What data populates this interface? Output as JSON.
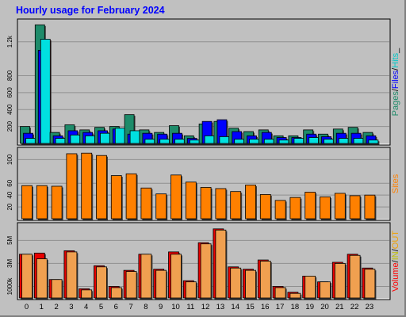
{
  "title": "Hourly usage for February 2024",
  "colors": {
    "background": "#c0c0c0",
    "pages": "#1e8b6a",
    "files": "#0000ff",
    "hits": "#00ffff",
    "sites": "#ff8000",
    "volume": "#ff0000",
    "in": "#c0c000",
    "out": "#f0a000",
    "title": "#0000ff"
  },
  "chart_data": [
    {
      "type": "bar",
      "categories": [
        "0",
        "1",
        "2",
        "3",
        "4",
        "5",
        "6",
        "7",
        "8",
        "9",
        "10",
        "11",
        "12",
        "13",
        "14",
        "15",
        "16",
        "17",
        "18",
        "19",
        "20",
        "21",
        "22",
        "23"
      ],
      "legend": [
        {
          "text": "Pages",
          "color": "#1e8b6a"
        },
        {
          "text": "Files",
          "color": "#0000ff"
        },
        {
          "text": "Hits",
          "color": "#00c8c8"
        }
      ],
      "legend_separators": [
        "/",
        "/",
        "_"
      ],
      "yticks": [
        "200",
        "400",
        "600",
        "800",
        "1.2k"
      ],
      "ylim": [
        0,
        1450
      ],
      "series": [
        {
          "name": "Pages",
          "values": [
            200,
            1400,
            130,
            220,
            160,
            190,
            200,
            340,
            160,
            130,
            210,
            90,
            230,
            260,
            180,
            140,
            160,
            90,
            90,
            160,
            110,
            170,
            190,
            130
          ]
        },
        {
          "name": "Files",
          "values": [
            120,
            1100,
            90,
            150,
            130,
            150,
            170,
            110,
            120,
            110,
            120,
            60,
            260,
            280,
            140,
            90,
            130,
            70,
            70,
            110,
            80,
            120,
            120,
            90
          ]
        },
        {
          "name": "Hits",
          "values": [
            60,
            1230,
            60,
            100,
            90,
            120,
            180,
            150,
            50,
            50,
            50,
            40,
            90,
            80,
            50,
            50,
            50,
            40,
            60,
            70,
            50,
            60,
            60,
            40
          ]
        }
      ]
    },
    {
      "type": "bar",
      "categories": [
        "0",
        "1",
        "2",
        "3",
        "4",
        "5",
        "6",
        "7",
        "8",
        "9",
        "10",
        "11",
        "12",
        "13",
        "14",
        "15",
        "16",
        "17",
        "18",
        "19",
        "20",
        "21",
        "22",
        "23"
      ],
      "legend": [
        {
          "text": "Sites",
          "color": "#ff8000"
        }
      ],
      "yticks": [
        "20",
        "40",
        "60",
        "100"
      ],
      "ylim": [
        0,
        118
      ],
      "series": [
        {
          "name": "Sites",
          "values": [
            56,
            56,
            55,
            110,
            111,
            107,
            73,
            76,
            52,
            42,
            74,
            62,
            53,
            51,
            46,
            57,
            41,
            31,
            36,
            45,
            37,
            43,
            39,
            40
          ]
        }
      ]
    },
    {
      "type": "bar",
      "categories": [
        "0",
        "1",
        "2",
        "3",
        "4",
        "5",
        "6",
        "7",
        "8",
        "9",
        "10",
        "11",
        "12",
        "13",
        "14",
        "15",
        "16",
        "17",
        "18",
        "19",
        "20",
        "21",
        "22",
        "23"
      ],
      "legend": [
        {
          "text": "Volume",
          "color": "#ff0000"
        },
        {
          "text": "IN",
          "color": "#c0c000"
        },
        {
          "text": "OUT",
          "color": "#f0a000"
        }
      ],
      "legend_separators": [
        "/",
        "/",
        ""
      ],
      "yticks": [
        "1000k",
        "3M",
        "5M"
      ],
      "ylim": [
        0,
        6400
      ],
      "series": [
        {
          "name": "Volume",
          "values": [
            3800,
            3900,
            1600,
            4100,
            800,
            2800,
            1000,
            2400,
            3800,
            2500,
            4000,
            1500,
            4800,
            6000,
            2700,
            2500,
            3300,
            1000,
            500,
            1900,
            1400,
            3100,
            3800,
            2600
          ]
        },
        {
          "name": "OUT",
          "values": [
            3800,
            3400,
            1600,
            4000,
            700,
            2700,
            900,
            2300,
            3800,
            2400,
            3800,
            1400,
            4700,
            5900,
            2600,
            2400,
            3200,
            900,
            400,
            1900,
            1400,
            3000,
            3700,
            2500
          ]
        }
      ]
    }
  ]
}
